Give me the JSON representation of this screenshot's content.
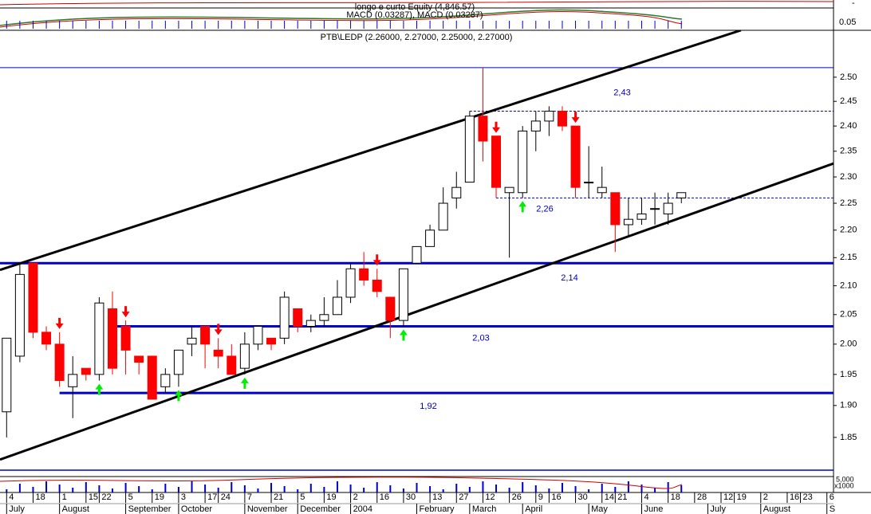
{
  "chart_data": {
    "type": "candlestick",
    "title": "PTB\\LEDP (2.26000, 2.27000, 2.25000, 2.27000)",
    "indicator_title": "longo e curto Equity (4,846.57)",
    "indicator_subtitle": "MACD (0.03287), MACD (0.03287)",
    "indicator_tick": "0.05",
    "volume_tick": "5,000",
    "volume_unit": "x1000",
    "x": [
      0,
      1,
      2,
      3,
      4,
      5,
      6,
      7,
      8,
      9,
      10,
      11,
      12,
      13,
      14,
      15,
      16,
      17,
      18,
      19,
      20,
      21,
      22,
      23,
      24,
      25,
      26,
      27,
      28,
      29,
      30,
      31,
      32,
      33,
      34,
      35,
      36,
      37,
      38,
      39,
      40,
      41,
      42,
      43,
      44,
      45,
      46,
      47,
      48,
      49,
      50,
      51
    ],
    "open": [
      1.89,
      1.98,
      2.14,
      2.02,
      2.0,
      1.93,
      1.96,
      1.95,
      2.06,
      2.03,
      1.98,
      1.98,
      1.93,
      1.95,
      2.0,
      2.03,
      1.99,
      1.98,
      1.96,
      2.0,
      2.01,
      2.01,
      2.06,
      2.03,
      2.04,
      2.05,
      2.08,
      2.13,
      2.11,
      2.08,
      2.04,
      2.14,
      2.17,
      2.2,
      2.26,
      2.29,
      2.42,
      2.38,
      2.27,
      2.27,
      2.39,
      2.41,
      2.43,
      2.4,
      2.29,
      2.27,
      2.27,
      2.21,
      2.22,
      2.24,
      2.23,
      2.26
    ],
    "high": [
      2.01,
      2.14,
      2.14,
      2.03,
      2.02,
      1.98,
      1.96,
      2.08,
      2.09,
      2.04,
      1.98,
      1.98,
      1.96,
      1.99,
      2.03,
      2.03,
      2.01,
      2.0,
      2.02,
      2.03,
      2.01,
      2.09,
      2.06,
      2.05,
      2.08,
      2.11,
      2.14,
      2.16,
      2.13,
      2.08,
      2.13,
      2.17,
      2.21,
      2.28,
      2.31,
      2.43,
      2.52,
      2.38,
      2.28,
      2.4,
      2.43,
      2.44,
      2.44,
      2.4,
      2.36,
      2.32,
      2.27,
      2.26,
      2.26,
      2.27,
      2.27,
      2.27
    ],
    "low": [
      1.85,
      1.97,
      2.01,
      1.99,
      1.93,
      1.88,
      1.94,
      1.94,
      1.95,
      1.95,
      1.95,
      1.91,
      1.92,
      1.93,
      1.98,
      1.96,
      1.96,
      1.95,
      1.95,
      1.99,
      1.99,
      2.0,
      2.02,
      2.02,
      2.03,
      2.05,
      2.07,
      2.1,
      2.08,
      2.01,
      2.03,
      2.14,
      2.17,
      2.2,
      2.24,
      2.29,
      2.33,
      2.26,
      2.15,
      2.26,
      2.35,
      2.38,
      2.39,
      2.26,
      2.26,
      2.26,
      2.16,
      2.19,
      2.21,
      2.21,
      2.21,
      2.25
    ],
    "close": [
      2.01,
      2.12,
      2.02,
      2.0,
      1.94,
      1.95,
      1.95,
      2.07,
      1.96,
      1.99,
      1.97,
      1.91,
      1.95,
      1.99,
      2.01,
      2.0,
      1.98,
      1.95,
      2.0,
      2.03,
      2.0,
      2.08,
      2.03,
      2.04,
      2.05,
      2.08,
      2.13,
      2.11,
      2.09,
      2.04,
      2.13,
      2.17,
      2.2,
      2.25,
      2.28,
      2.42,
      2.37,
      2.28,
      2.28,
      2.39,
      2.41,
      2.43,
      2.4,
      2.28,
      2.29,
      2.28,
      2.21,
      2.22,
      2.23,
      2.24,
      2.25,
      2.27
    ],
    "up_color": "#ffffff",
    "down_color": "#ff0000",
    "xlim": [
      -0.5,
      62.5
    ],
    "ylim": [
      1.8,
      2.6
    ],
    "log_scale": true,
    "yticks": [
      {
        "value": 1.85,
        "label": "1.85"
      },
      {
        "value": 1.9,
        "label": "1.90"
      },
      {
        "value": 1.95,
        "label": "1.95"
      },
      {
        "value": 2.0,
        "label": "2.00"
      },
      {
        "value": 2.05,
        "label": "2.05"
      },
      {
        "value": 2.1,
        "label": "2.10"
      },
      {
        "value": 2.15,
        "label": "2.15"
      },
      {
        "value": 2.2,
        "label": "2.20"
      },
      {
        "value": 2.25,
        "label": "2.25"
      },
      {
        "value": 2.3,
        "label": "2.30"
      },
      {
        "value": 2.35,
        "label": "2.35"
      },
      {
        "value": 2.4,
        "label": "2.40"
      },
      {
        "value": 2.45,
        "label": "2.45"
      },
      {
        "value": 2.5,
        "label": "2.50"
      }
    ],
    "xticks": [
      {
        "value": 0,
        "label": "4"
      },
      {
        "value": 2,
        "label": "18"
      },
      {
        "value": 4,
        "label": "1"
      },
      {
        "value": 6,
        "label": "15"
      },
      {
        "value": 7,
        "label": "22"
      },
      {
        "value": 9,
        "label": "5"
      },
      {
        "value": 11,
        "label": "19"
      },
      {
        "value": 13,
        "label": "3"
      },
      {
        "value": 15,
        "label": "17"
      },
      {
        "value": 16,
        "label": "24"
      },
      {
        "value": 18,
        "label": "7"
      },
      {
        "value": 20,
        "label": "21"
      },
      {
        "value": 22,
        "label": "5"
      },
      {
        "value": 24,
        "label": "19"
      },
      {
        "value": 26,
        "label": "2"
      },
      {
        "value": 28,
        "label": "16"
      },
      {
        "value": 30,
        "label": "30"
      },
      {
        "value": 32,
        "label": "13"
      },
      {
        "value": 34,
        "label": "27"
      },
      {
        "value": 36,
        "label": "12"
      },
      {
        "value": 38,
        "label": "26"
      },
      {
        "value": 40,
        "label": "9"
      },
      {
        "value": 41,
        "label": "16"
      },
      {
        "value": 43,
        "label": "30"
      },
      {
        "value": 45,
        "label": "14"
      },
      {
        "value": 46,
        "label": "21"
      },
      {
        "value": 48,
        "label": "4"
      },
      {
        "value": 50,
        "label": "18"
      },
      {
        "value": 52,
        "label": "28"
      },
      {
        "value": 54,
        "label": "12"
      },
      {
        "value": 55,
        "label": "19"
      },
      {
        "value": 57,
        "label": "2"
      },
      {
        "value": 59,
        "label": "16"
      },
      {
        "value": 60,
        "label": "23"
      },
      {
        "value": 62,
        "label": "6"
      }
    ],
    "month_ticks": [
      {
        "value": 0,
        "label": "July"
      },
      {
        "value": 4,
        "label": "August"
      },
      {
        "value": 9,
        "label": "September"
      },
      {
        "value": 13,
        "label": "October"
      },
      {
        "value": 18,
        "label": "November"
      },
      {
        "value": 22,
        "label": "December"
      },
      {
        "value": 26,
        "label": "2004"
      },
      {
        "value": 31,
        "label": "February"
      },
      {
        "value": 35,
        "label": "March"
      },
      {
        "value": 39,
        "label": "April"
      },
      {
        "value": 44,
        "label": "May"
      },
      {
        "value": 48,
        "label": "June"
      },
      {
        "value": 53,
        "label": "July"
      },
      {
        "value": 57,
        "label": "August"
      },
      {
        "value": 62,
        "label": "S"
      }
    ],
    "level_color": "#0000cc",
    "levels": [
      {
        "value": 2.43,
        "from": 35,
        "label": "2,43",
        "style": "dashed"
      },
      {
        "value": 2.26,
        "from": 37,
        "label": "2,26",
        "style": "dashed"
      },
      {
        "value": 2.14,
        "from": -0.5,
        "label": "2,14",
        "style": "thick"
      },
      {
        "value": 2.03,
        "from": 8,
        "label": "2,03",
        "style": "thick"
      },
      {
        "value": 1.92,
        "from": 4,
        "label": "1,92",
        "style": "thick"
      },
      {
        "value": 2.52,
        "from": -0.5,
        "style": "thin"
      }
    ],
    "trendlines": [
      {
        "x": [
          -0.5,
          62.5
        ],
        "y": [
          1.816,
          2.326
        ]
      },
      {
        "x": [
          -0.5,
          55.5
        ],
        "y": [
          2.128,
          2.6
        ]
      }
    ],
    "sell_signals": [
      4,
      9,
      16,
      28,
      37,
      43
    ],
    "buy_signals": [
      7,
      13,
      18,
      30,
      39
    ]
  }
}
